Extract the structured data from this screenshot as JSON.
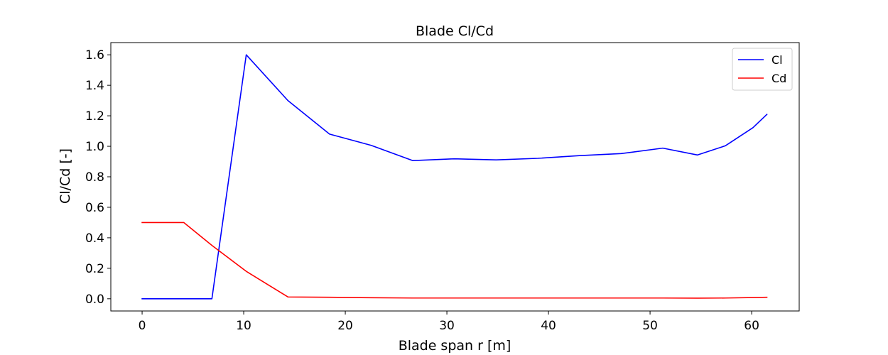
{
  "chart_data": {
    "type": "line",
    "title": "Blade Cl/Cd",
    "xlabel": "Blade span r [m]",
    "ylabel": "Cl/Cd [-]",
    "xlim": [
      -3.08,
      64.68
    ],
    "ylim": [
      -0.08,
      1.68
    ],
    "xticks": [
      0,
      10,
      20,
      30,
      40,
      50,
      60
    ],
    "yticks": [
      0.0,
      0.2,
      0.4,
      0.6,
      0.8,
      1.0,
      1.2,
      1.4,
      1.6
    ],
    "ytick_labels": [
      "0.0",
      "0.2",
      "0.4",
      "0.6",
      "0.8",
      "1.0",
      "1.2",
      "1.4",
      "1.6"
    ],
    "grid": false,
    "legend_position": "top-right",
    "series": [
      {
        "name": "Cl",
        "color": "#0000ff",
        "x": [
          0,
          2.87,
          5.6,
          6.87,
          10.25,
          14.35,
          18.45,
          22.55,
          26.65,
          30.75,
          34.85,
          38.95,
          43.05,
          47.15,
          51.25,
          54.67,
          57.4,
          60.13,
          61.5
        ],
        "y": [
          0.0,
          0.0,
          0.0,
          0.0,
          1.6,
          1.3,
          1.08,
          1.006,
          0.906,
          0.918,
          0.911,
          0.921,
          0.939,
          0.952,
          0.988,
          0.943,
          1.003,
          1.122,
          1.209
        ]
      },
      {
        "name": "Cd",
        "color": "#ff0000",
        "x": [
          0,
          2.87,
          4.1,
          6.87,
          10.25,
          14.35,
          18.45,
          22.55,
          26.65,
          30.75,
          34.85,
          38.95,
          43.05,
          47.15,
          51.25,
          54.67,
          57.4,
          60.13,
          61.5
        ],
        "y": [
          0.5,
          0.5,
          0.5,
          0.35,
          0.18,
          0.012,
          0.01,
          0.007,
          0.005,
          0.005,
          0.005,
          0.005,
          0.005,
          0.005,
          0.005,
          0.004,
          0.005,
          0.008,
          0.01
        ]
      }
    ]
  }
}
